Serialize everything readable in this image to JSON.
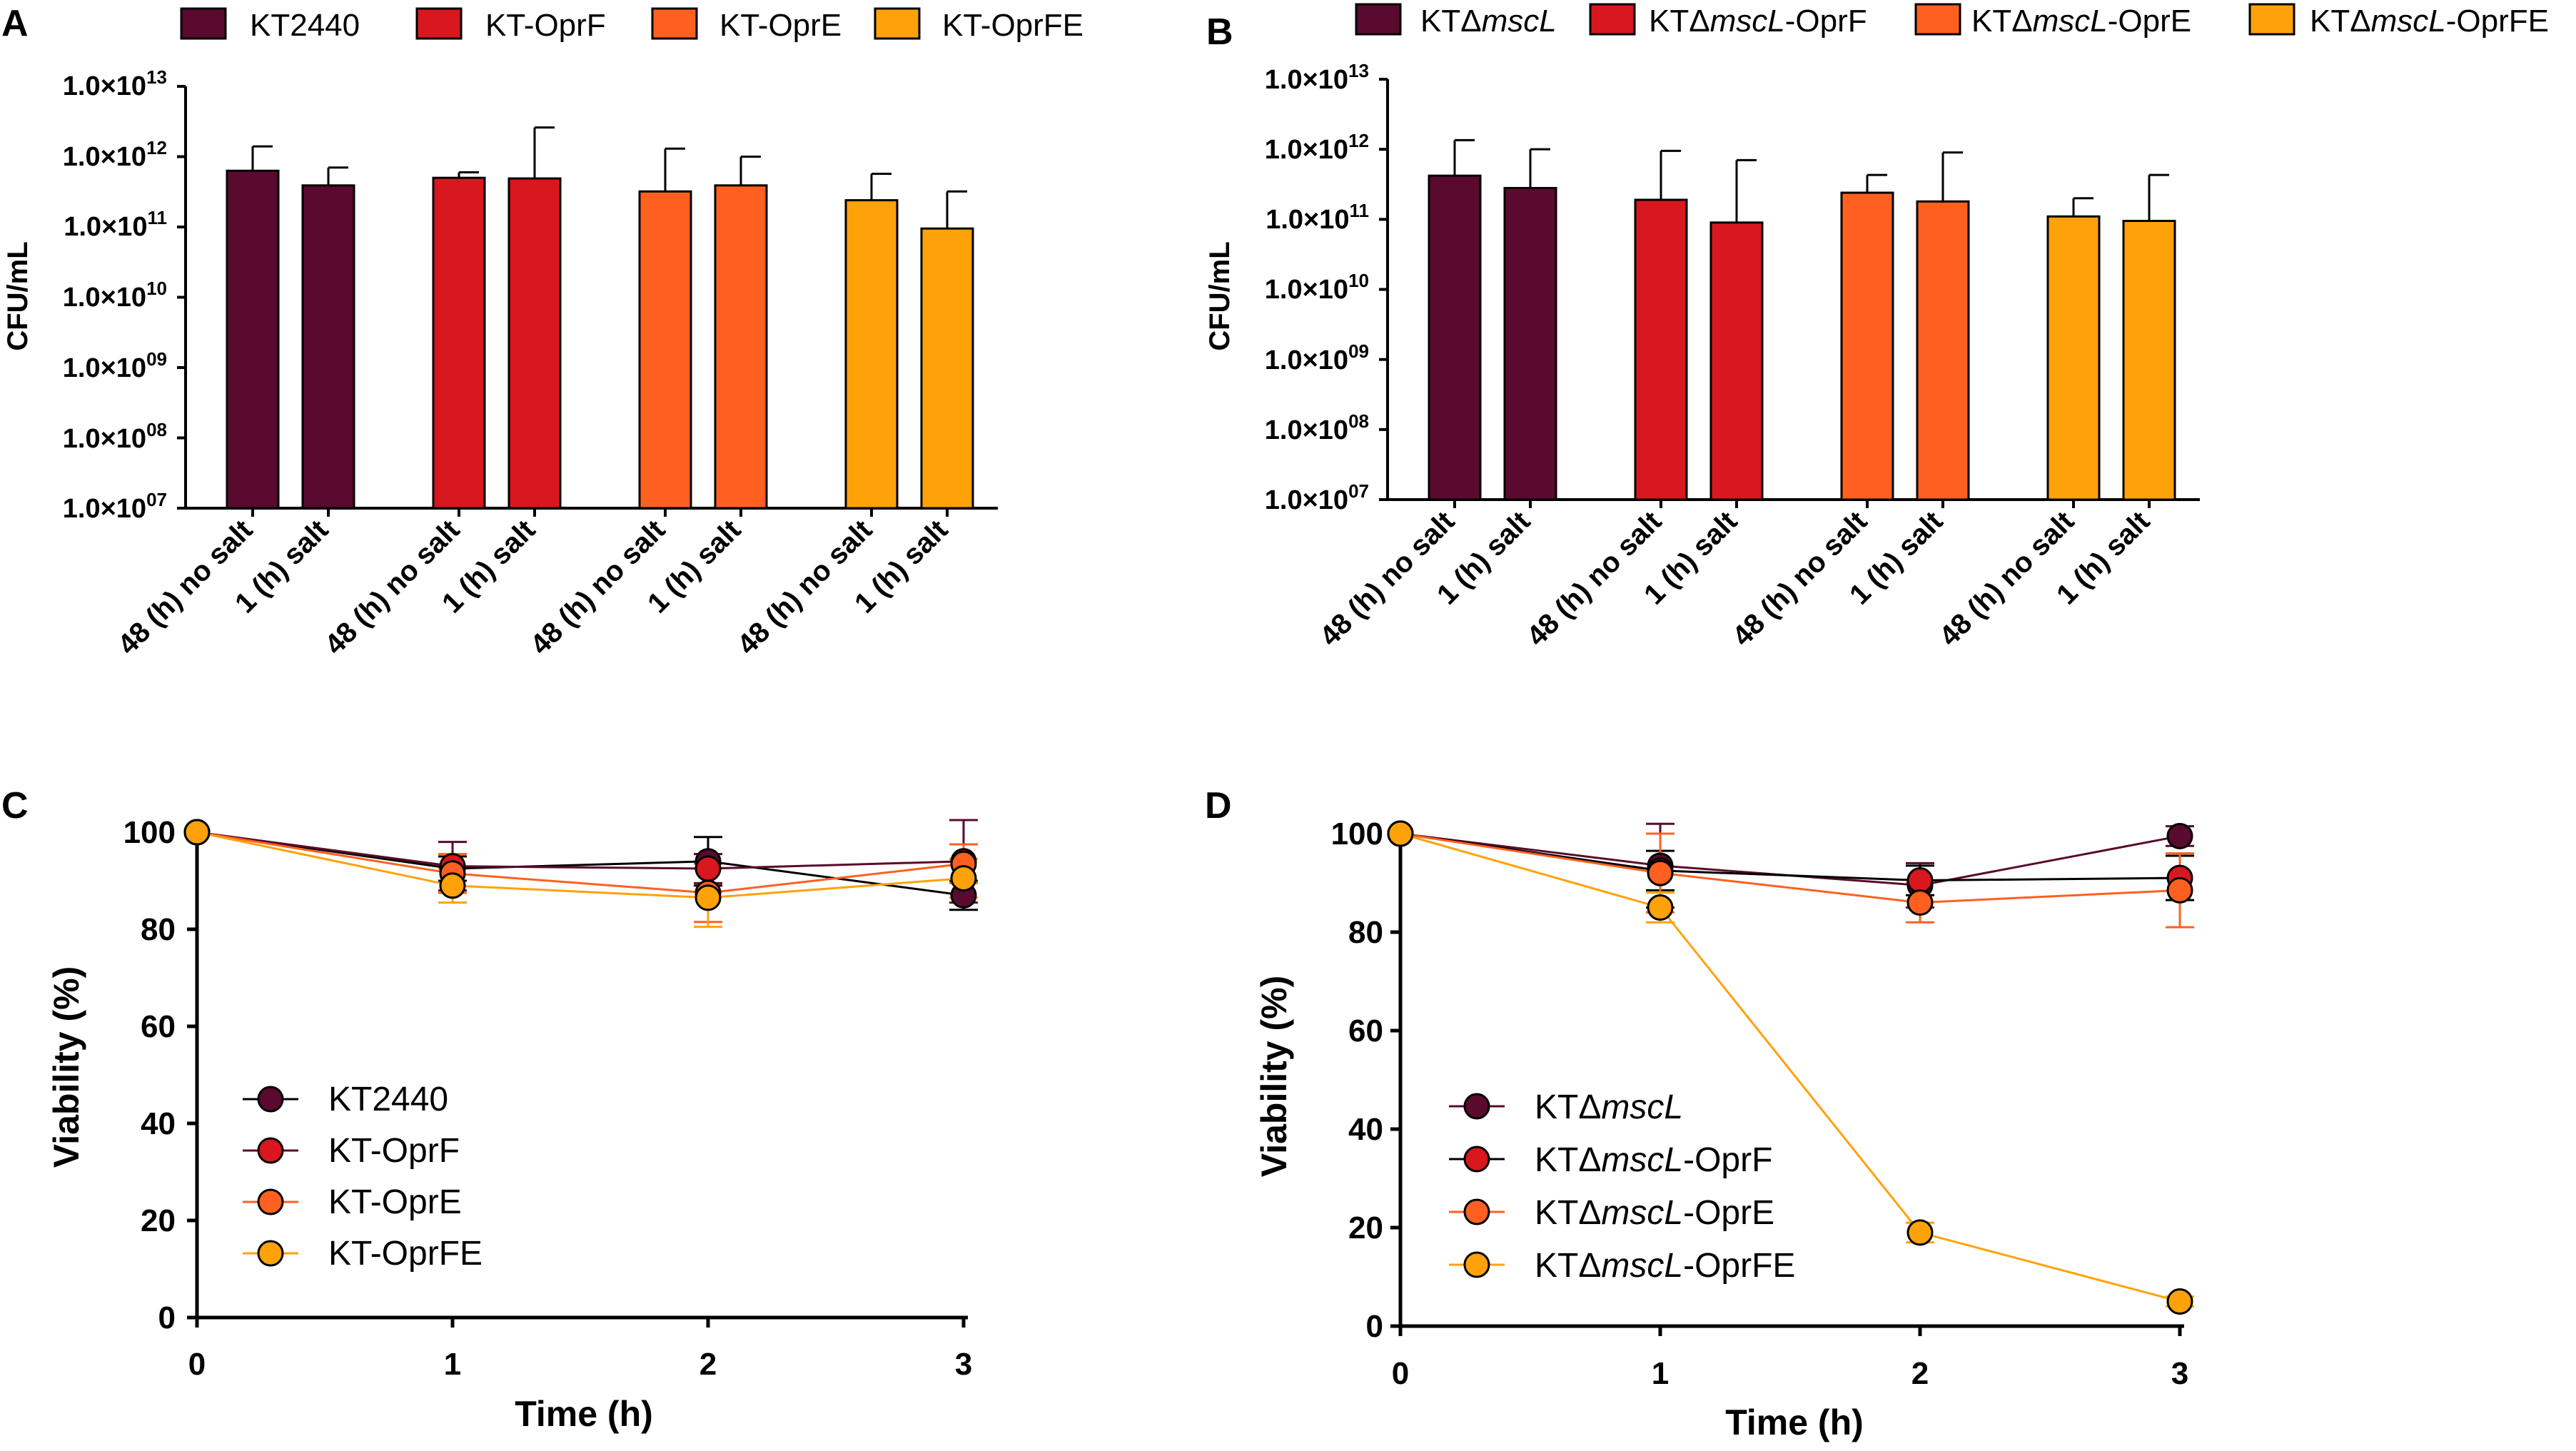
{
  "colors": {
    "kt2440": "#5a0a2e",
    "oprF": "#d9171e",
    "oprE": "#ff6020",
    "oprFE": "#ffa20a",
    "axis": "#000000"
  },
  "chart_data": [
    {
      "id": "A",
      "panel_label": "A",
      "type": "bar",
      "scale": "log10",
      "ylabel": "CFU/mL",
      "ylim_exponents": [
        7,
        13
      ],
      "ytick_labels": [
        {
          "mantissa": "1.0×10",
          "exp": "07"
        },
        {
          "mantissa": "1.0×10",
          "exp": "08"
        },
        {
          "mantissa": "1.0×10",
          "exp": "09"
        },
        {
          "mantissa": "1.0×10",
          "exp": "10"
        },
        {
          "mantissa": "1.0×10",
          "exp": "11"
        },
        {
          "mantissa": "1.0×10",
          "exp": "12"
        },
        {
          "mantissa": "1.0×10",
          "exp": "13"
        }
      ],
      "legend": [
        {
          "parts": [
            {
              "t": "KT2440",
              "i": false
            }
          ],
          "color": "#5a0a2e"
        },
        {
          "parts": [
            {
              "t": "KT-OprF",
              "i": false
            }
          ],
          "color": "#d9171e"
        },
        {
          "parts": [
            {
              "t": "KT-OprE",
              "i": false
            }
          ],
          "color": "#ff6020"
        },
        {
          "parts": [
            {
              "t": "KT-OprFE",
              "i": false
            }
          ],
          "color": "#ffa20a"
        }
      ],
      "groups": [
        {
          "color": "#5a0a2e",
          "bars": [
            {
              "category": "48 (h) no salt",
              "value": 630000000000.0,
              "error": 1400000000000.0
            },
            {
              "category": "1 (h) salt",
              "value": 390000000000.0,
              "error": 700000000000.0
            }
          ]
        },
        {
          "color": "#d9171e",
          "bars": [
            {
              "category": "48 (h) no salt",
              "value": 500000000000.0,
              "error": 600000000000.0
            },
            {
              "category": "1 (h) salt",
              "value": 490000000000.0,
              "error": 2600000000000.0
            }
          ]
        },
        {
          "color": "#ff6020",
          "bars": [
            {
              "category": "48 (h) no salt",
              "value": 320000000000.0,
              "error": 1300000000000.0
            },
            {
              "category": "1 (h) salt",
              "value": 390000000000.0,
              "error": 1000000000000.0
            }
          ]
        },
        {
          "color": "#ffa20a",
          "bars": [
            {
              "category": "48 (h) no salt",
              "value": 240000000000.0,
              "error": 570000000000.0
            },
            {
              "category": "1 (h) salt",
              "value": 95000000000.0,
              "error": 320000000000.0
            }
          ]
        }
      ]
    },
    {
      "id": "B",
      "panel_label": "B",
      "type": "bar",
      "scale": "log10",
      "ylabel": "CFU/mL",
      "ylim_exponents": [
        7,
        13
      ],
      "ytick_labels": [
        {
          "mantissa": "1.0×10",
          "exp": "07"
        },
        {
          "mantissa": "1.0×10",
          "exp": "08"
        },
        {
          "mantissa": "1.0×10",
          "exp": "09"
        },
        {
          "mantissa": "1.0×10",
          "exp": "10"
        },
        {
          "mantissa": "1.0×10",
          "exp": "11"
        },
        {
          "mantissa": "1.0×10",
          "exp": "12"
        },
        {
          "mantissa": "1.0×10",
          "exp": "13"
        }
      ],
      "legend": [
        {
          "parts": [
            {
              "t": "KTΔ",
              "i": false
            },
            {
              "t": "mscL",
              "i": true
            }
          ],
          "color": "#5a0a2e"
        },
        {
          "parts": [
            {
              "t": "KTΔ",
              "i": false
            },
            {
              "t": "mscL",
              "i": true
            },
            {
              "t": "-OprF",
              "i": false
            }
          ],
          "color": "#d9171e"
        },
        {
          "parts": [
            {
              "t": "KTΔ",
              "i": false
            },
            {
              "t": "mscL",
              "i": true
            },
            {
              "t": "-OprE",
              "i": false
            }
          ],
          "color": "#ff6020"
        },
        {
          "parts": [
            {
              "t": "KTΔ",
              "i": false
            },
            {
              "t": "mscL",
              "i": true
            },
            {
              "t": "-OprFE",
              "i": false
            }
          ],
          "color": "#ffa20a"
        }
      ],
      "groups": [
        {
          "color": "#5a0a2e",
          "bars": [
            {
              "category": "48 (h) no salt",
              "value": 420000000000.0,
              "error": 1350000000000.0
            },
            {
              "category": "1 (h) salt",
              "value": 280000000000.0,
              "error": 1000000000000.0
            }
          ]
        },
        {
          "color": "#d9171e",
          "bars": [
            {
              "category": "48 (h) no salt",
              "value": 190000000000.0,
              "error": 950000000000.0
            },
            {
              "category": "1 (h) salt",
              "value": 90000000000.0,
              "error": 700000000000.0
            }
          ]
        },
        {
          "color": "#ff6020",
          "bars": [
            {
              "category": "48 (h) no salt",
              "value": 240000000000.0,
              "error": 430000000000.0
            },
            {
              "category": "1 (h) salt",
              "value": 180000000000.0,
              "error": 900000000000.0
            }
          ]
        },
        {
          "color": "#ffa20a",
          "bars": [
            {
              "category": "48 (h) no salt",
              "value": 110000000000.0,
              "error": 200000000000.0
            },
            {
              "category": "1 (h) salt",
              "value": 95000000000.0,
              "error": 430000000000.0
            }
          ]
        }
      ]
    },
    {
      "id": "C",
      "panel_label": "C",
      "type": "line",
      "xlabel": "Time (h)",
      "ylabel": "Viability (%)",
      "x": [
        0,
        1,
        2,
        3
      ],
      "xlim": [
        0,
        3
      ],
      "ylim": [
        0,
        100
      ],
      "xticks": [
        "0",
        "1",
        "2",
        "3"
      ],
      "yticks": [
        "0",
        "20",
        "40",
        "60",
        "80",
        "100"
      ],
      "series": [
        {
          "parts": [
            {
              "t": "KT2440",
              "i": false
            }
          ],
          "color": "#5a0a2e",
          "line_color": "#000000",
          "values": [
            100,
            92.5,
            94,
            87
          ],
          "errors": [
            0,
            2.5,
            5,
            3
          ]
        },
        {
          "parts": [
            {
              "t": "KT-OprF",
              "i": false
            }
          ],
          "color": "#d9171e",
          "line_color": "#5a0a2e",
          "values": [
            100,
            93,
            92.5,
            94
          ],
          "errors": [
            0,
            5,
            3,
            8.5
          ]
        },
        {
          "parts": [
            {
              "t": "KT-OprE",
              "i": false
            }
          ],
          "color": "#ff6020",
          "line_color": "#ff6020",
          "values": [
            100,
            91.5,
            87.5,
            93.5
          ],
          "errors": [
            0,
            4,
            6,
            4
          ]
        },
        {
          "parts": [
            {
              "t": "KT-OprFE",
              "i": false
            }
          ],
          "color": "#ffa20a",
          "line_color": "#ffa20a",
          "values": [
            100,
            89,
            86.5,
            90.5
          ],
          "errors": [
            0,
            3.5,
            6,
            4
          ]
        }
      ]
    },
    {
      "id": "D",
      "panel_label": "D",
      "type": "line",
      "xlabel": "Time (h)",
      "ylabel": "Viability (%)",
      "x": [
        0,
        1,
        2,
        3
      ],
      "xlim": [
        0,
        3
      ],
      "ylim": [
        0,
        100
      ],
      "xticks": [
        "0",
        "1",
        "2",
        "3"
      ],
      "yticks": [
        "0",
        "20",
        "40",
        "60",
        "80",
        "100"
      ],
      "series": [
        {
          "parts": [
            {
              "t": "KTΔ",
              "i": false
            },
            {
              "t": "mscL",
              "i": true
            }
          ],
          "color": "#5a0a2e",
          "line_color": "#5a0a2e",
          "values": [
            100,
            93.5,
            89.5,
            99.5
          ],
          "errors": [
            0,
            8.5,
            4.5,
            2
          ]
        },
        {
          "parts": [
            {
              "t": "KTΔ",
              "i": false
            },
            {
              "t": "mscL",
              "i": true
            },
            {
              "t": "-OprF",
              "i": false
            }
          ],
          "color": "#d9171e",
          "line_color": "#000000",
          "values": [
            100,
            92.5,
            90.5,
            91
          ],
          "errors": [
            0,
            4,
            3,
            4.5
          ]
        },
        {
          "parts": [
            {
              "t": "KTΔ",
              "i": false
            },
            {
              "t": "mscL",
              "i": true
            },
            {
              "t": "-OprE",
              "i": false
            }
          ],
          "color": "#ff6020",
          "line_color": "#ff6020",
          "values": [
            100,
            92,
            86,
            88.5
          ],
          "errors": [
            0,
            8,
            4,
            7.5
          ]
        },
        {
          "parts": [
            {
              "t": "KTΔ",
              "i": false
            },
            {
              "t": "mscL",
              "i": true
            },
            {
              "t": "-OprFE",
              "i": false
            }
          ],
          "color": "#ffa20a",
          "line_color": "#ffa20a",
          "values": [
            100,
            85,
            19,
            5
          ],
          "errors": [
            0,
            3,
            2,
            1
          ]
        }
      ]
    }
  ]
}
